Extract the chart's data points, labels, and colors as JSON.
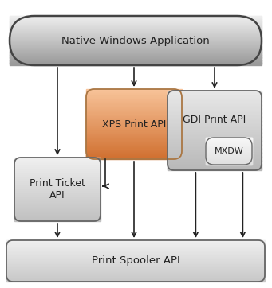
{
  "title": "Native Windows Application",
  "xps_label": "XPS Print API",
  "gdi_label": "GDI Print API",
  "mxdw_label": "MXDW",
  "ticket_label": "Print Ticket\nAPI",
  "spooler_label": "Print Spooler API",
  "bg_color": "#ffffff",
  "arrow_color": "#222222",
  "border_color": "#555555",
  "native_grad_top": "#f0f0f0",
  "native_grad_bot": "#999999",
  "xps_grad_top": "#f8c49a",
  "xps_grad_bot": "#d07030",
  "gdi_grad_top": "#e8e8e8",
  "gdi_grad_bot": "#b8b8b8",
  "ticket_grad_top": "#f0f0f0",
  "ticket_grad_bot": "#c0c0c0",
  "spooler_grad_top": "#f0f0f0",
  "spooler_grad_bot": "#c8c8c8",
  "mxdw_grad_top": "#f8f8f8",
  "mxdw_grad_bot": "#e0e0e0"
}
